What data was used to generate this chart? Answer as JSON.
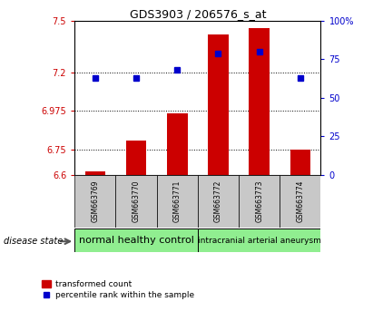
{
  "title": "GDS3903 / 206576_s_at",
  "samples": [
    "GSM663769",
    "GSM663770",
    "GSM663771",
    "GSM663772",
    "GSM663773",
    "GSM663774"
  ],
  "transformed_counts": [
    6.62,
    6.8,
    6.96,
    7.42,
    7.46,
    6.75
  ],
  "baseline": 6.6,
  "percentile_ranks": [
    63,
    63,
    68,
    79,
    80,
    63
  ],
  "ylim_left": [
    6.6,
    7.5
  ],
  "ylim_right": [
    0,
    100
  ],
  "yticks_left": [
    6.6,
    6.75,
    6.975,
    7.2,
    7.5
  ],
  "ytick_labels_left": [
    "6.6",
    "6.75",
    "6.975",
    "7.2",
    "7.5"
  ],
  "yticks_right": [
    0,
    25,
    50,
    75,
    100
  ],
  "ytick_labels_right": [
    "0",
    "25",
    "50",
    "75",
    "100%"
  ],
  "hlines": [
    6.75,
    6.975,
    7.2
  ],
  "bar_color": "#cc0000",
  "dot_color": "#0000cc",
  "bar_width": 0.5,
  "group_labels": [
    "normal healthy control",
    "intracranial arterial aneurysm"
  ],
  "group_ranges": [
    [
      0,
      3
    ],
    [
      3,
      6
    ]
  ],
  "group_colors": [
    "#90ee90",
    "#90ee90"
  ],
  "disease_state_label": "disease state",
  "legend_bar_label": "transformed count",
  "legend_dot_label": "percentile rank within the sample",
  "axis_label_color_left": "#cc0000",
  "axis_label_color_right": "#0000cc",
  "gray_box_color": "#c8c8c8"
}
